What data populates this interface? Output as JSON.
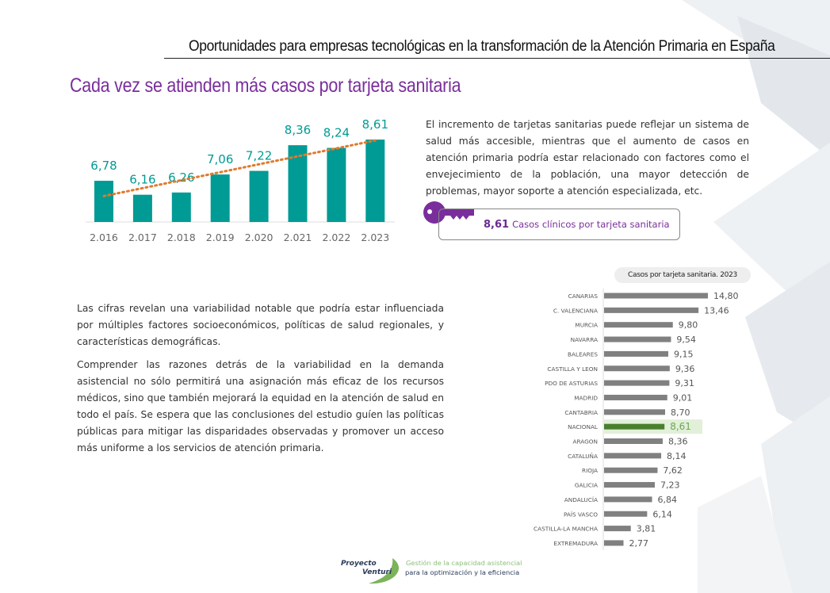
{
  "header": {
    "title": "Oportunidades para empresas tecnológicas en la transformación de la Atención Primaria en España"
  },
  "section": {
    "title": "Cada vez se atienden más casos por tarjeta sanitaria"
  },
  "intro_text": "El incremento de tarjetas sanitarias puede reflejar un sistema de salud más accesible, mientras que el aumento de casos en atención primaria podría estar relacionado con factores como el envejecimiento de la población, una mayor detección de problemas, mayor soporte a atención especializada, etc.",
  "key_metric": {
    "value": "8,61",
    "label": "Casos clínicos por tarjeta sanitaria",
    "icon": "key-icon"
  },
  "body": {
    "p1": "Las cifras revelan una variabilidad notable que podría estar influenciada por múltiples factores socioeconómicos, políticas de salud regionales, y características demográficas.",
    "p2": "Comprender las razones detrás de la variabilidad en la demanda asistencial no sólo permitirá una asignación más eficaz de los recursos médicos, sino que también mejorará la equidad en la atención de salud en todo el país. Se espera que las conclusiones del estudio guíen las políticas públicas para mitigar las disparidades observadas y promover un acceso más uniforme a los servicios de atención primaria."
  },
  "footer": {
    "logo_line1": "Proyecto",
    "logo_line2": "Venturi",
    "tagline1": "Gestión de la capacidad asistencial",
    "tagline2": "para la optimización y la eficiencia"
  },
  "colors": {
    "accent": "#7a2e9c",
    "bar": "#009b94",
    "trend": "#e07a2e",
    "region_bar": "#808080",
    "highlight_bar": "#4a7f2e",
    "highlight_bg": "#e2efd9"
  },
  "chart_data": [
    {
      "type": "bar",
      "categories": [
        "2.016",
        "2.017",
        "2.018",
        "2.019",
        "2.020",
        "2.021",
        "2.022",
        "2.023"
      ],
      "values": [
        6.78,
        6.16,
        6.26,
        7.06,
        7.22,
        8.36,
        8.24,
        8.61
      ],
      "data_labels": [
        "6,78",
        "6,16",
        "6,26",
        "7,06",
        "7,22",
        "8,36",
        "8,24",
        "8,61"
      ],
      "trendline": "linear",
      "grid": false
    },
    {
      "type": "bar",
      "orientation": "horizontal",
      "title": "Casos por tarjeta sanitaria. 2023",
      "categories": [
        "CANARIAS",
        "C. VALENCIANA",
        "MURCIA",
        "NAVARRA",
        "BALEARES",
        "CASTILLA Y LEON",
        "PDO DE ASTURIAS",
        "MADRID",
        "CANTABRIA",
        "NACIONAL",
        "ARAGON",
        "CATALUÑA",
        "RIOJA",
        "GALICIA",
        "ANDALUCÍA",
        "PAÍS VASCO",
        "CASTILLA-LA MANCHA",
        "EXTREMADURA"
      ],
      "values": [
        14.8,
        13.46,
        9.8,
        9.54,
        9.15,
        9.36,
        9.31,
        9.01,
        8.7,
        8.61,
        8.36,
        8.14,
        7.62,
        7.23,
        6.84,
        6.14,
        3.81,
        2.77
      ],
      "data_labels": [
        "14,80",
        "13,46",
        "9,80",
        "9,54",
        "9,15",
        "9,36",
        "9,31",
        "9,01",
        "8,70",
        "8,61",
        "8,36",
        "8,14",
        "7,62",
        "7,23",
        "6,84",
        "6,14",
        "3,81",
        "2,77"
      ],
      "highlight": "NACIONAL"
    }
  ]
}
